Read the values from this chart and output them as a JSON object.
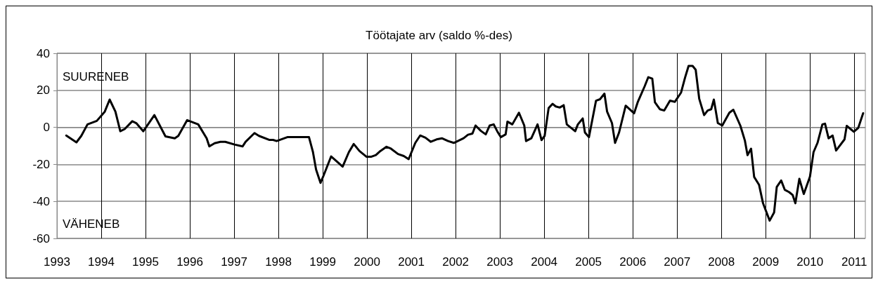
{
  "chart_data": {
    "type": "line",
    "title": "Töötajate arv (saldo %-des)",
    "annotations": [
      "SUURENEB",
      "VÄHENEB"
    ],
    "series": [
      {
        "color": "#000000",
        "x": [
          1993.21,
          1993.44,
          1993.55,
          1993.69,
          1993.9,
          1994.08,
          1994.19,
          1994.32,
          1994.43,
          1994.53,
          1994.7,
          1994.79,
          1994.95,
          1995.2,
          1995.45,
          1995.66,
          1995.74,
          1995.94,
          1996.19,
          1996.38,
          1996.44,
          1996.56,
          1996.69,
          1996.8,
          1997.01,
          1997.19,
          1997.26,
          1997.46,
          1997.56,
          1997.8,
          1997.88,
          1997.96,
          1998.2,
          1998.69,
          1998.78,
          1998.85,
          1998.95,
          1999.02,
          1999.19,
          1999.33,
          1999.45,
          1999.59,
          1999.7,
          1999.83,
          1999.99,
          2000.09,
          2000.2,
          2000.3,
          2000.44,
          2000.54,
          2000.7,
          2000.83,
          2000.94,
          2001.09,
          2001.2,
          2001.32,
          2001.44,
          2001.57,
          2001.69,
          2001.83,
          2001.96,
          2002.18,
          2002.28,
          2002.38,
          2002.45,
          2002.57,
          2002.68,
          2002.77,
          2002.86,
          2002.94,
          2003.02,
          2003.13,
          2003.17,
          2003.28,
          2003.43,
          2003.55,
          2003.59,
          2003.71,
          2003.85,
          2003.94,
          2004.01,
          2004.1,
          2004.19,
          2004.26,
          2004.35,
          2004.44,
          2004.51,
          2004.7,
          2004.76,
          2004.87,
          2004.92,
          2005.01,
          2005.17,
          2005.26,
          2005.36,
          2005.42,
          2005.53,
          2005.6,
          2005.69,
          2005.84,
          2006.03,
          2006.11,
          2006.27,
          2006.35,
          2006.44,
          2006.5,
          2006.61,
          2006.71,
          2006.84,
          2006.95,
          2007.09,
          2007.18,
          2007.26,
          2007.35,
          2007.42,
          2007.5,
          2007.61,
          2007.69,
          2007.77,
          2007.83,
          2007.92,
          2008.02,
          2008.18,
          2008.27,
          2008.43,
          2008.53,
          2008.59,
          2008.67,
          2008.74,
          2008.85,
          2008.94,
          2009.09,
          2009.19,
          2009.25,
          2009.35,
          2009.43,
          2009.53,
          2009.61,
          2009.67,
          2009.76,
          2009.86,
          2010.0,
          2010.08,
          2010.17,
          2010.28,
          2010.34,
          2010.42,
          2010.51,
          2010.59,
          2010.78,
          2010.83,
          2010.99,
          2011.09,
          2011.2
        ],
        "values": [
          -4.4,
          -8.1,
          -4.6,
          1.6,
          3.5,
          8.5,
          15,
          8.5,
          -2.1,
          -0.9,
          3.3,
          2.3,
          -2.1,
          6.6,
          -4.9,
          -5.9,
          -4.6,
          3.9,
          1.6,
          -5.9,
          -10.3,
          -8.6,
          -7.8,
          -7.8,
          -9.3,
          -10.3,
          -7.8,
          -3.1,
          -4.6,
          -6.8,
          -6.8,
          -7.4,
          -5.3,
          -5.3,
          -13.4,
          -22.8,
          -30,
          -26,
          -15.7,
          -18.7,
          -21.2,
          -13.4,
          -9,
          -12.8,
          -15.9,
          -15.9,
          -15,
          -12.8,
          -10.5,
          -11.5,
          -14.4,
          -15.5,
          -17.2,
          -8.4,
          -4.4,
          -5.6,
          -7.8,
          -6.5,
          -5.9,
          -7.4,
          -8.4,
          -5.9,
          -4,
          -3.4,
          1,
          -1.9,
          -3.8,
          1,
          1.6,
          -2.1,
          -5.3,
          -3.8,
          3.1,
          1.6,
          7.9,
          1,
          -7.4,
          -5.9,
          1.6,
          -6.9,
          -4.6,
          10.4,
          12.7,
          11.3,
          10.7,
          12,
          1.6,
          -2.1,
          1.6,
          4.8,
          -2.8,
          -5.3,
          14.4,
          15.2,
          18.2,
          8.5,
          2.3,
          -8.4,
          -2.8,
          11.7,
          7.6,
          13.5,
          22.3,
          27.1,
          26.3,
          13.5,
          9.8,
          9.1,
          14.4,
          13.8,
          18.8,
          26.9,
          33.2,
          33.2,
          31.1,
          15.4,
          6.6,
          9.1,
          9.8,
          15,
          2.3,
          1,
          7.9,
          9.5,
          0.8,
          -7.1,
          -15,
          -11.5,
          -26.8,
          -31,
          -41,
          -50.4,
          -46,
          -32.2,
          -28.7,
          -33.7,
          -35,
          -36.6,
          -41,
          -27.8,
          -36,
          -26.6,
          -13.4,
          -8.4,
          1.6,
          2,
          -5.9,
          -4.4,
          -12.5,
          -6.5,
          0.8,
          -2.4,
          -0.3,
          7.6
        ]
      }
    ],
    "xlim": [
      1993,
      2011.25
    ],
    "xticks": [
      1993,
      1994,
      1995,
      1996,
      1997,
      1998,
      1999,
      2000,
      2001,
      2002,
      2003,
      2004,
      2005,
      2006,
      2007,
      2008,
      2009,
      2010,
      2011
    ],
    "ylim": [
      -60,
      40
    ],
    "yticks": [
      -60,
      -40,
      -20,
      0,
      20,
      40
    ],
    "grid": true,
    "marker": "none",
    "line_style": "solid"
  }
}
